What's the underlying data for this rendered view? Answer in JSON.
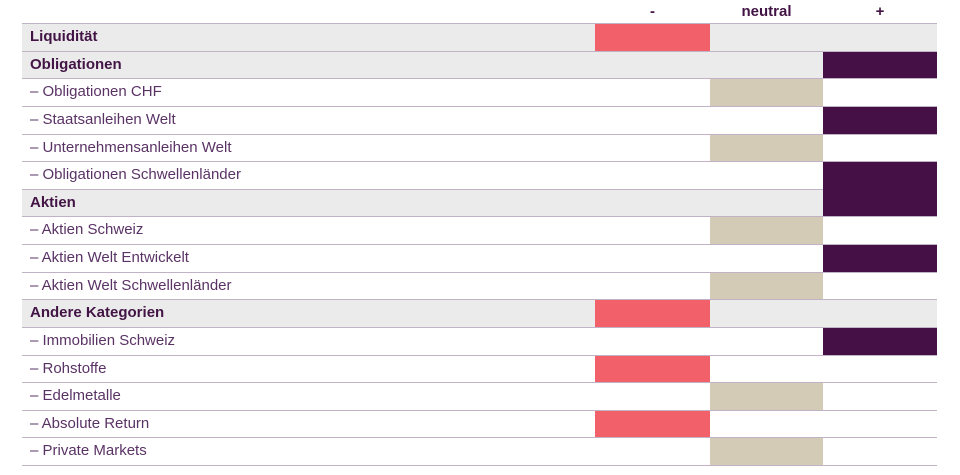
{
  "palette": {
    "negative_bar": "#f2606a",
    "neutral_bar": "#d3cbb6",
    "positive_bar": "#451046",
    "header_row_background": "#ebebeb",
    "separator_line": "#c2b2c6",
    "label_text": "#5a3365",
    "header_text": "#421445"
  },
  "chart_data": {
    "type": "table",
    "description": "Asset allocation positioning table: each row is an asset class positioned in one of three columns (underweight -, neutral, overweight +)",
    "columns": [
      "-",
      "neutral",
      "+"
    ],
    "column_ids": [
      "negative",
      "neutral",
      "positive"
    ],
    "legend_position": "top",
    "rows": [
      {
        "label": "Liquidität",
        "group_header": true,
        "positioning": "negative"
      },
      {
        "label": "Obligationen",
        "group_header": true,
        "positioning": "positive"
      },
      {
        "label": "– Obligationen CHF",
        "group_header": false,
        "positioning": "neutral"
      },
      {
        "label": "– Staatsanleihen Welt",
        "group_header": false,
        "positioning": "positive"
      },
      {
        "label": "– Unternehmensanleihen Welt",
        "group_header": false,
        "positioning": "neutral"
      },
      {
        "label": "– Obligationen Schwellenländer",
        "group_header": false,
        "positioning": "positive",
        "merge_down": true
      },
      {
        "label": "Aktien",
        "group_header": true,
        "positioning": "positive"
      },
      {
        "label": "– Aktien Schweiz",
        "group_header": false,
        "positioning": "neutral"
      },
      {
        "label": "– Aktien Welt Entwickelt",
        "group_header": false,
        "positioning": "positive"
      },
      {
        "label": "– Aktien Welt Schwellenländer",
        "group_header": false,
        "positioning": "neutral"
      },
      {
        "label": "Andere Kategorien",
        "group_header": true,
        "positioning": "negative"
      },
      {
        "label": "– Immobilien Schweiz",
        "group_header": false,
        "positioning": "positive"
      },
      {
        "label": "– Rohstoffe",
        "group_header": false,
        "positioning": "negative"
      },
      {
        "label": "– Edelmetalle",
        "group_header": false,
        "positioning": "neutral"
      },
      {
        "label": "– Absolute Return",
        "group_header": false,
        "positioning": "negative"
      },
      {
        "label": "– Private Markets",
        "group_header": false,
        "positioning": "neutral"
      }
    ]
  }
}
